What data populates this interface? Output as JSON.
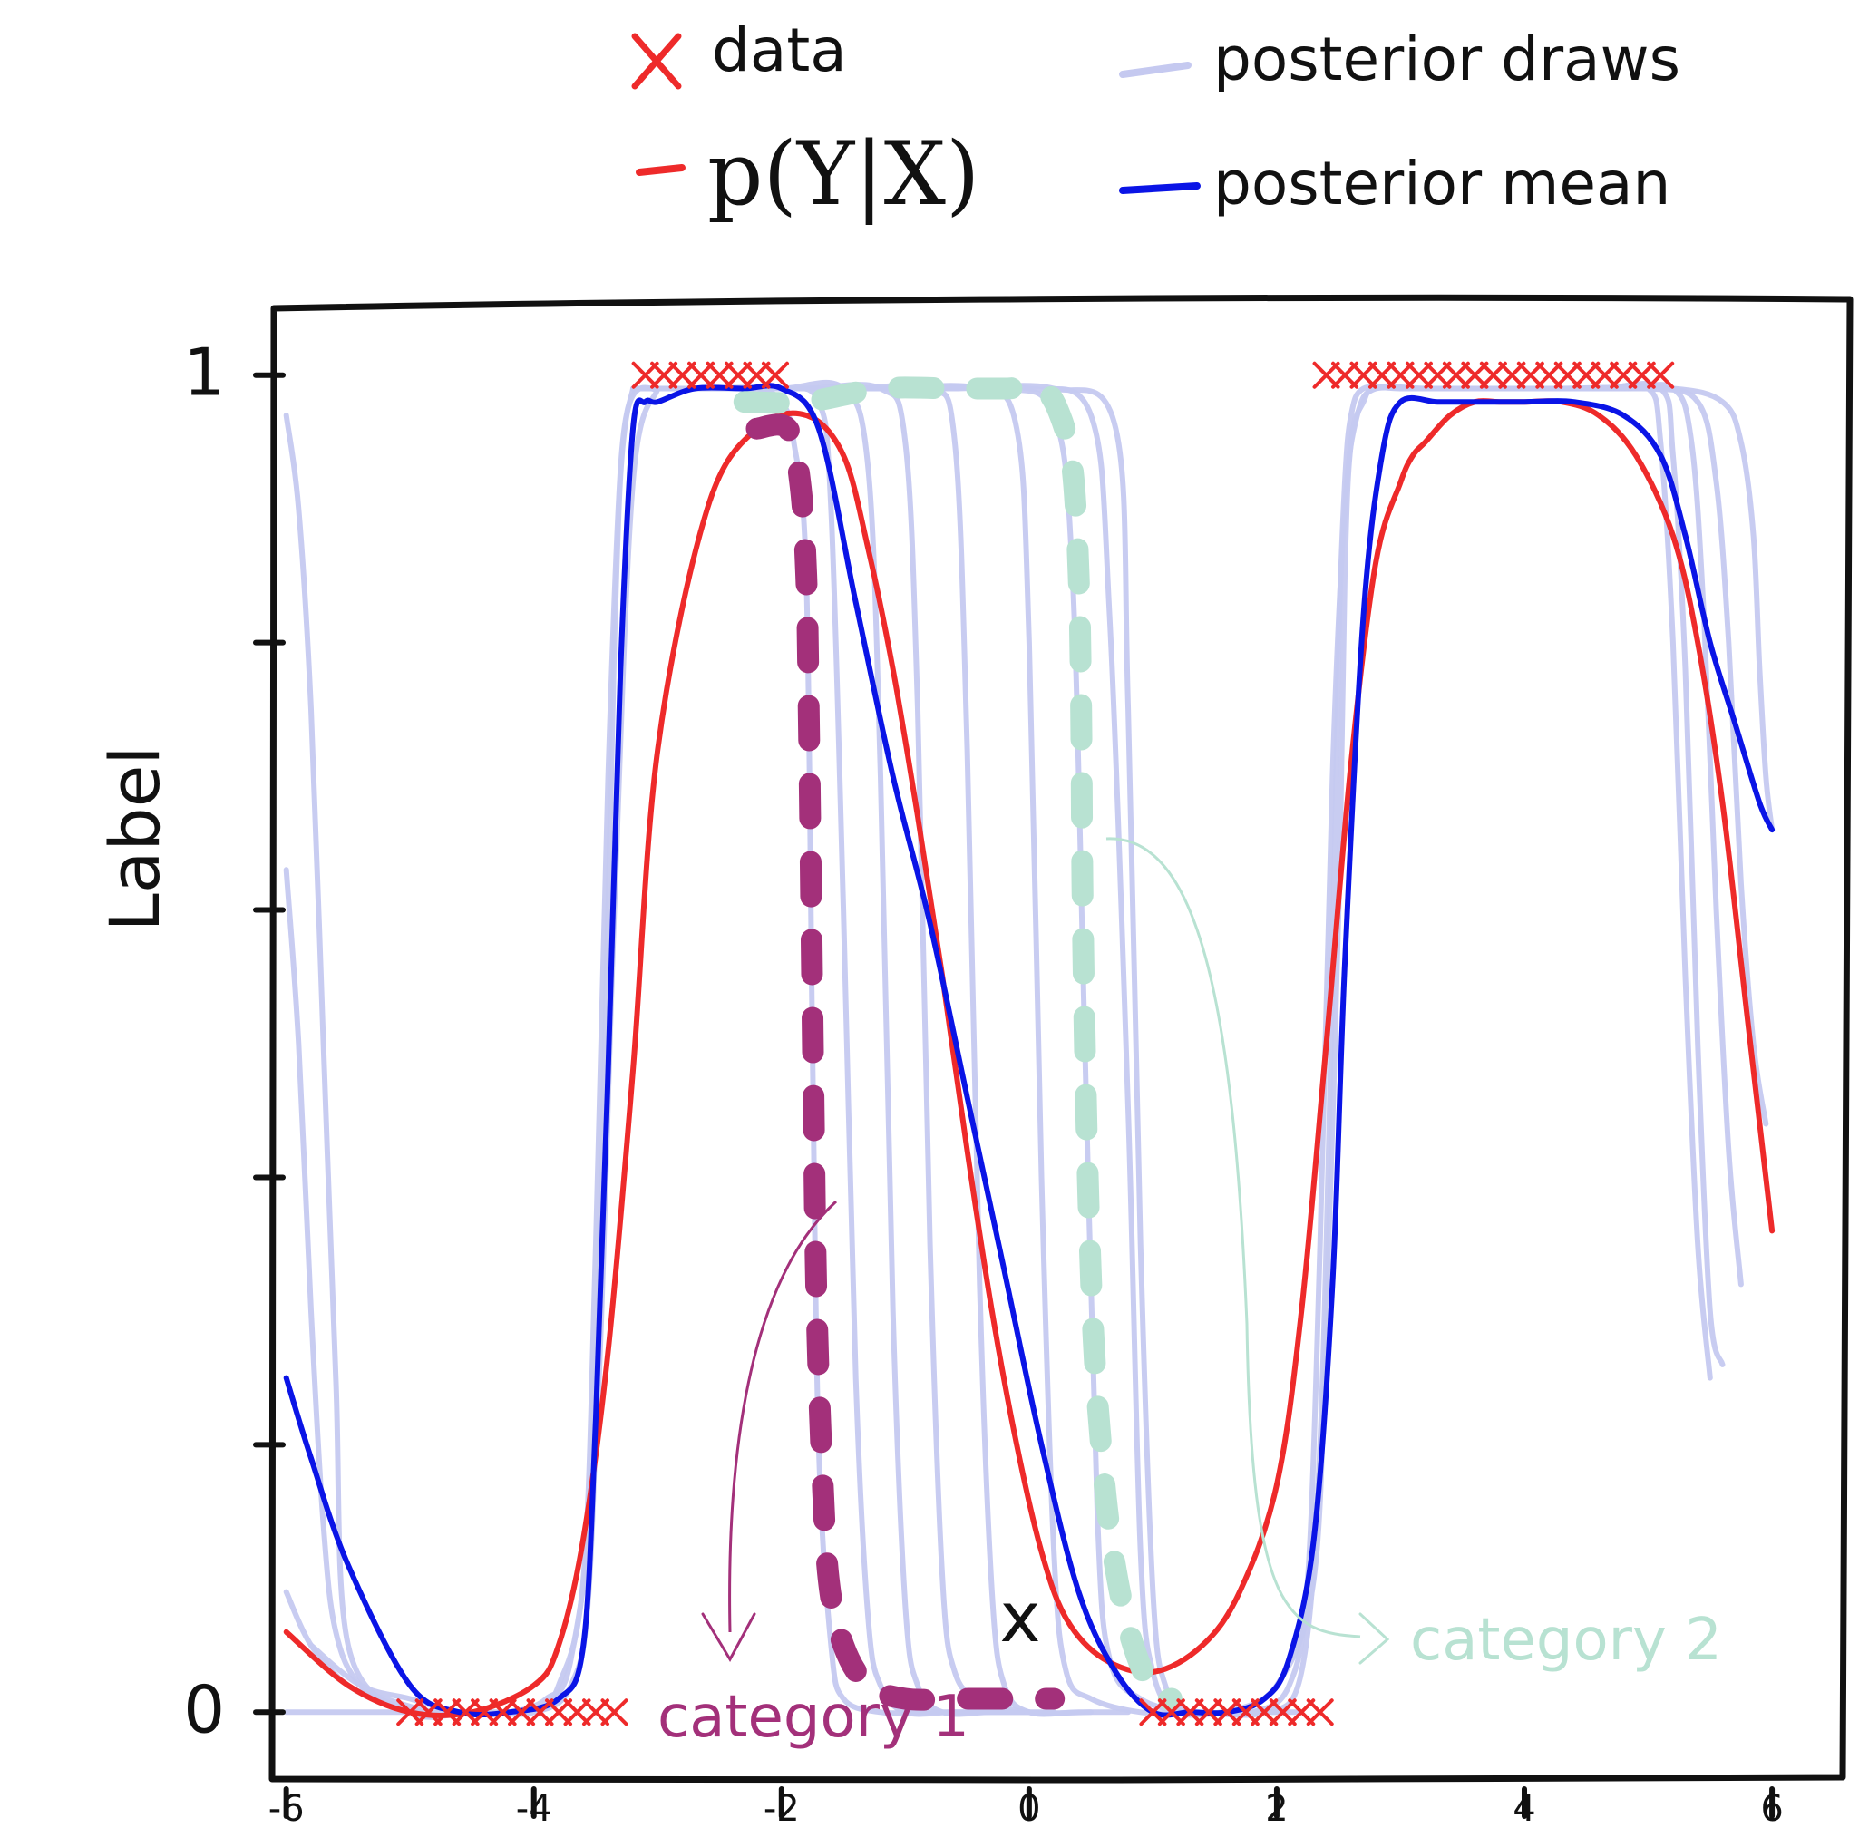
{
  "chart_data": {
    "type": "line",
    "title": "",
    "xlabel": "x",
    "ylabel": "Label",
    "xlim": [
      -6.1,
      6.6
    ],
    "ylim": [
      -0.05,
      1.05
    ],
    "x_ticks": [
      -6,
      -4,
      -2,
      0,
      2,
      4,
      6
    ],
    "x_tick_labels": [
      "-6",
      "-4",
      "-2",
      "0",
      "2",
      "4",
      "6"
    ],
    "y_ticks": [
      0,
      0.2,
      0.4,
      0.6,
      0.8,
      1
    ],
    "y_tick_labels": [
      "0",
      "",
      "",
      "",
      "",
      "1"
    ],
    "grid": false,
    "legend": {
      "placement": "top",
      "entries": [
        {
          "label": "data",
          "marker": "x",
          "color": "#ee2a2a"
        },
        {
          "label": "p(Y|X)",
          "marker": "line",
          "color": "#ee2a2a"
        },
        {
          "label": "posterior draws",
          "marker": "line",
          "color": "#c5c9f0"
        },
        {
          "label": "posterior mean",
          "marker": "line",
          "color": "#0a14e6"
        }
      ]
    },
    "colors": {
      "data": "#ee2a2a",
      "true_function": "#ee2a2a",
      "posterior_draws": "#c5c9f0",
      "posterior_mean": "#0a14e6",
      "category_1": "#a3307a",
      "category_2": "#b8e2d2"
    },
    "data_points": {
      "label_1": {
        "x": [
          -3.1,
          -2.95,
          -2.8,
          -2.65,
          -2.5,
          -2.35,
          -2.2,
          -2.05,
          2.4,
          2.55,
          2.7,
          2.85,
          3.0,
          3.15,
          3.3,
          3.45,
          3.6,
          3.75,
          3.9,
          4.05,
          4.2,
          4.35,
          4.5,
          4.65,
          4.8,
          4.95,
          5.1
        ],
        "y": [
          1,
          1,
          1,
          1,
          1,
          1,
          1,
          1,
          1,
          1,
          1,
          1,
          1,
          1,
          1,
          1,
          1,
          1,
          1,
          1,
          1,
          1,
          1,
          1,
          1,
          1,
          1
        ]
      },
      "label_0": {
        "x": [
          -5.0,
          -4.85,
          -4.7,
          -4.55,
          -4.4,
          -4.25,
          -4.1,
          -3.95,
          -3.8,
          -3.65,
          -3.5,
          -3.35,
          1.0,
          1.15,
          1.3,
          1.45,
          1.6,
          1.75,
          1.9,
          2.05,
          2.2,
          2.35
        ],
        "y": [
          0,
          0,
          0,
          0,
          0,
          0,
          0,
          0,
          0,
          0,
          0,
          0,
          0,
          0,
          0,
          0,
          0,
          0,
          0,
          0,
          0,
          0
        ]
      }
    },
    "series": [
      {
        "name": "p(Y|X)",
        "role": "true_function",
        "x": [
          -6.0,
          -5.5,
          -5.0,
          -4.5,
          -4.0,
          -3.8,
          -3.6,
          -3.4,
          -3.2,
          -3.0,
          -2.6,
          -2.2,
          -1.8,
          -1.5,
          -1.3,
          -1.1,
          -0.9,
          -0.7,
          -0.5,
          -0.3,
          -0.1,
          0.1,
          0.3,
          0.6,
          1.0,
          1.4,
          1.7,
          2.0,
          2.2,
          2.4,
          2.6,
          2.8,
          3.0,
          3.1,
          3.2,
          3.4,
          3.6,
          3.8,
          4.0,
          4.3,
          4.6,
          4.9,
          5.2,
          5.4,
          5.6,
          5.8,
          6.0
        ],
        "y": [
          0.06,
          0.02,
          0.0,
          0.0,
          0.02,
          0.05,
          0.13,
          0.27,
          0.48,
          0.72,
          0.9,
          0.96,
          0.97,
          0.94,
          0.87,
          0.78,
          0.67,
          0.55,
          0.42,
          0.3,
          0.2,
          0.12,
          0.07,
          0.04,
          0.03,
          0.05,
          0.09,
          0.17,
          0.3,
          0.5,
          0.71,
          0.86,
          0.92,
          0.94,
          0.95,
          0.97,
          0.98,
          0.98,
          0.98,
          0.98,
          0.97,
          0.94,
          0.88,
          0.8,
          0.68,
          0.52,
          0.36
        ]
      },
      {
        "name": "posterior mean",
        "role": "posterior_mean",
        "x": [
          -6.0,
          -5.8,
          -5.5,
          -5.0,
          -4.6,
          -4.2,
          -3.8,
          -3.6,
          -3.5,
          -3.4,
          -3.3,
          -3.2,
          -3.1,
          -3.0,
          -2.7,
          -2.3,
          -2.0,
          -1.7,
          -1.4,
          -1.1,
          -0.8,
          -0.5,
          -0.2,
          0.1,
          0.4,
          0.7,
          1.0,
          1.3,
          1.6,
          1.9,
          2.1,
          2.3,
          2.45,
          2.55,
          2.7,
          2.85,
          3.0,
          3.3,
          3.6,
          4.0,
          4.4,
          4.8,
          5.1,
          5.3,
          5.5,
          5.7,
          5.9,
          6.0
        ],
        "y": [
          0.25,
          0.19,
          0.11,
          0.02,
          0.0,
          0.0,
          0.01,
          0.05,
          0.22,
          0.48,
          0.78,
          0.96,
          0.98,
          0.98,
          0.99,
          0.99,
          0.99,
          0.96,
          0.83,
          0.7,
          0.59,
          0.46,
          0.33,
          0.2,
          0.09,
          0.03,
          0.0,
          0.0,
          0.0,
          0.01,
          0.04,
          0.13,
          0.32,
          0.56,
          0.82,
          0.94,
          0.98,
          0.98,
          0.98,
          0.98,
          0.98,
          0.97,
          0.94,
          0.88,
          0.8,
          0.74,
          0.68,
          0.66
        ]
      }
    ],
    "posterior_draws": [
      {
        "x": [
          -6.0,
          -5.9,
          -5.8,
          -5.7,
          -5.6,
          -5.5,
          -5.0,
          -4.5,
          -4.0
        ],
        "y": [
          0.97,
          0.9,
          0.75,
          0.5,
          0.25,
          0.05,
          0.0,
          0.0,
          0.0
        ]
      },
      {
        "x": [
          -6.0,
          -5.9,
          -5.8,
          -5.7,
          -5.6,
          -5.4,
          -5.0,
          -4.5
        ],
        "y": [
          0.63,
          0.5,
          0.3,
          0.14,
          0.06,
          0.02,
          0.0,
          0.0
        ]
      },
      {
        "x": [
          -6.0,
          -5.8,
          -5.5,
          -5.2,
          -4.8,
          -4.4,
          -4.0,
          -3.7,
          -3.55,
          -3.45,
          -3.35,
          -3.25,
          -3.0
        ],
        "y": [
          0.09,
          0.05,
          0.02,
          0.01,
          0.0,
          0.0,
          0.0,
          0.02,
          0.1,
          0.4,
          0.8,
          0.97,
          0.99
        ]
      },
      {
        "x": [
          -6.0,
          -5.6,
          -5.2,
          -4.8,
          -4.4,
          -4.0,
          -3.8,
          -3.6,
          -3.5,
          -3.4,
          -3.3,
          -3.2
        ],
        "y": [
          0.0,
          0.0,
          0.0,
          0.0,
          0.0,
          0.0,
          0.02,
          0.1,
          0.35,
          0.7,
          0.93,
          0.99
        ]
      },
      {
        "x": [
          -5.8,
          -5.4,
          -5.0,
          -4.6,
          -4.2,
          -3.9,
          -3.7,
          -3.5,
          -3.35,
          -3.2,
          -3.0
        ],
        "y": [
          0.05,
          0.02,
          0.01,
          0.0,
          0.0,
          0.01,
          0.04,
          0.2,
          0.6,
          0.92,
          0.99
        ]
      },
      {
        "x": [
          -3.2,
          -3.0,
          -2.6,
          -2.2,
          -2.0,
          -1.9,
          -1.8,
          -1.75,
          -1.7,
          -1.6,
          -1.5,
          -1.2,
          -0.8,
          -0.4,
          0.0
        ],
        "y": [
          0.99,
          0.99,
          0.99,
          0.99,
          0.98,
          0.95,
          0.85,
          0.5,
          0.2,
          0.05,
          0.01,
          0.0,
          0.0,
          0.0,
          0.0
        ]
      },
      {
        "x": [
          -3.2,
          -2.6,
          -2.0,
          -1.7,
          -1.6,
          -1.5,
          -1.4,
          -1.3,
          -1.2,
          -1.0,
          -0.6,
          0.0
        ],
        "y": [
          0.99,
          0.99,
          0.99,
          0.98,
          0.9,
          0.6,
          0.25,
          0.07,
          0.02,
          0.0,
          0.0,
          0.0
        ]
      },
      {
        "x": [
          -3.2,
          -2.6,
          -2.0,
          -1.5,
          -1.3,
          -1.2,
          -1.1,
          -1.0,
          -0.9,
          -0.7,
          -0.3,
          0.2
        ],
        "y": [
          0.99,
          0.99,
          0.99,
          0.99,
          0.93,
          0.7,
          0.3,
          0.08,
          0.02,
          0.0,
          0.0,
          0.0
        ]
      },
      {
        "x": [
          -3.0,
          -2.4,
          -1.8,
          -1.2,
          -1.0,
          -0.9,
          -0.8,
          -0.7,
          -0.6,
          -0.4,
          0.0,
          0.5
        ],
        "y": [
          0.99,
          0.99,
          0.99,
          0.99,
          0.95,
          0.75,
          0.35,
          0.1,
          0.03,
          0.01,
          0.0,
          0.0
        ]
      },
      {
        "x": [
          -3.0,
          -2.2,
          -1.4,
          -0.8,
          -0.6,
          -0.5,
          -0.4,
          -0.3,
          -0.2,
          0.0,
          0.4,
          0.8
        ],
        "y": [
          0.99,
          0.99,
          0.99,
          0.99,
          0.95,
          0.72,
          0.32,
          0.09,
          0.02,
          0.0,
          0.0,
          0.0
        ]
      },
      {
        "x": [
          -2.8,
          -2.0,
          -1.2,
          -0.4,
          -0.1,
          0.0,
          0.1,
          0.2,
          0.3,
          0.5,
          0.9,
          1.3
        ],
        "y": [
          0.99,
          0.99,
          0.99,
          0.99,
          0.96,
          0.8,
          0.4,
          0.12,
          0.03,
          0.01,
          0.0,
          0.0
        ]
      },
      {
        "x": [
          -2.6,
          -1.8,
          -1.0,
          -0.2,
          0.2,
          0.35,
          0.45,
          0.55,
          0.65,
          0.9,
          1.3,
          1.8
        ],
        "y": [
          0.99,
          0.99,
          0.99,
          0.99,
          0.97,
          0.85,
          0.5,
          0.15,
          0.04,
          0.01,
          0.0,
          0.0
        ]
      },
      {
        "x": [
          -2.4,
          -1.6,
          -0.8,
          0.0,
          0.5,
          0.65,
          0.8,
          0.9,
          1.0,
          1.2,
          1.6,
          2.0
        ],
        "y": [
          0.99,
          0.99,
          0.99,
          0.99,
          0.97,
          0.82,
          0.45,
          0.12,
          0.03,
          0.0,
          0.0,
          0.0
        ]
      },
      {
        "x": [
          -2.2,
          -1.4,
          -0.6,
          0.2,
          0.7,
          0.8,
          0.9,
          1.0,
          1.1,
          1.3,
          1.7,
          2.2
        ],
        "y": [
          0.99,
          0.99,
          0.99,
          0.99,
          0.96,
          0.75,
          0.35,
          0.09,
          0.02,
          0.0,
          0.0,
          0.0
        ]
      },
      {
        "x": [
          1.4,
          1.8,
          2.1,
          2.25,
          2.35,
          2.45,
          2.55,
          2.65,
          2.8,
          3.2,
          3.8,
          4.4,
          5.0
        ],
        "y": [
          0.0,
          0.0,
          0.02,
          0.1,
          0.35,
          0.7,
          0.9,
          0.97,
          0.99,
          0.99,
          0.99,
          0.99,
          0.99
        ]
      },
      {
        "x": [
          1.4,
          1.9,
          2.2,
          2.35,
          2.45,
          2.5,
          2.55,
          2.6,
          2.7,
          3.0,
          3.6,
          4.2
        ],
        "y": [
          0.0,
          0.0,
          0.03,
          0.2,
          0.55,
          0.8,
          0.92,
          0.97,
          0.99,
          0.99,
          0.99,
          0.99
        ]
      },
      {
        "x": [
          1.6,
          2.0,
          2.3,
          2.4,
          2.5,
          2.55,
          2.6,
          2.7,
          2.8,
          3.2,
          3.8
        ],
        "y": [
          0.0,
          0.02,
          0.1,
          0.3,
          0.6,
          0.85,
          0.95,
          0.98,
          0.99,
          0.99,
          0.99
        ]
      },
      {
        "x": [
          3.0,
          3.8,
          4.6,
          5.0,
          5.1,
          5.2,
          5.3,
          5.4,
          5.5
        ],
        "y": [
          0.99,
          0.99,
          0.99,
          0.99,
          0.95,
          0.8,
          0.55,
          0.35,
          0.25
        ]
      },
      {
        "x": [
          3.0,
          3.8,
          4.6,
          5.1,
          5.2,
          5.3,
          5.4,
          5.5,
          5.6
        ],
        "y": [
          0.99,
          0.99,
          0.99,
          0.99,
          0.94,
          0.78,
          0.5,
          0.3,
          0.26
        ]
      },
      {
        "x": [
          3.2,
          4.0,
          4.8,
          5.2,
          5.35,
          5.45,
          5.55,
          5.65,
          5.75
        ],
        "y": [
          0.99,
          0.99,
          0.99,
          0.99,
          0.95,
          0.82,
          0.6,
          0.42,
          0.32
        ]
      },
      {
        "x": [
          3.4,
          4.2,
          5.0,
          5.4,
          5.55,
          5.65,
          5.75,
          5.85,
          5.95
        ],
        "y": [
          0.99,
          0.99,
          0.99,
          0.98,
          0.92,
          0.8,
          0.62,
          0.5,
          0.44
        ]
      },
      {
        "x": [
          3.6,
          4.4,
          5.2,
          5.6,
          5.75,
          5.85,
          5.9,
          5.95,
          6.0
        ],
        "y": [
          0.99,
          0.99,
          0.99,
          0.98,
          0.95,
          0.88,
          0.78,
          0.7,
          0.66
        ]
      }
    ],
    "categories_highlight": [
      {
        "name": "category 1",
        "role": "category_1",
        "x": [
          -2.2,
          -1.95,
          -1.85,
          -1.8,
          -1.78,
          -1.76,
          -1.74,
          -1.72,
          -1.68,
          -1.62,
          -1.5,
          -1.3,
          -1.0,
          -0.6,
          -0.2,
          0.0,
          0.2
        ],
        "y": [
          0.96,
          0.96,
          0.92,
          0.85,
          0.75,
          0.6,
          0.45,
          0.32,
          0.2,
          0.1,
          0.05,
          0.02,
          0.01,
          0.01,
          0.01,
          0.01,
          0.01
        ]
      },
      {
        "name": "category 2",
        "role": "category_2",
        "x": [
          -2.3,
          -1.8,
          -1.2,
          -0.6,
          -0.2,
          0.1,
          0.25,
          0.35,
          0.4,
          0.42,
          0.43,
          0.45,
          0.48,
          0.52,
          0.58,
          0.66,
          0.78,
          0.92,
          1.05,
          1.15
        ],
        "y": [
          0.98,
          0.98,
          0.99,
          0.99,
          0.99,
          0.99,
          0.97,
          0.93,
          0.85,
          0.75,
          0.62,
          0.5,
          0.38,
          0.28,
          0.2,
          0.13,
          0.07,
          0.03,
          0.01,
          0.01
        ]
      }
    ],
    "annotations": [
      {
        "label": "category 1",
        "color": "#a3307a"
      },
      {
        "label": "category 2",
        "color": "#b8e2d2"
      }
    ]
  }
}
